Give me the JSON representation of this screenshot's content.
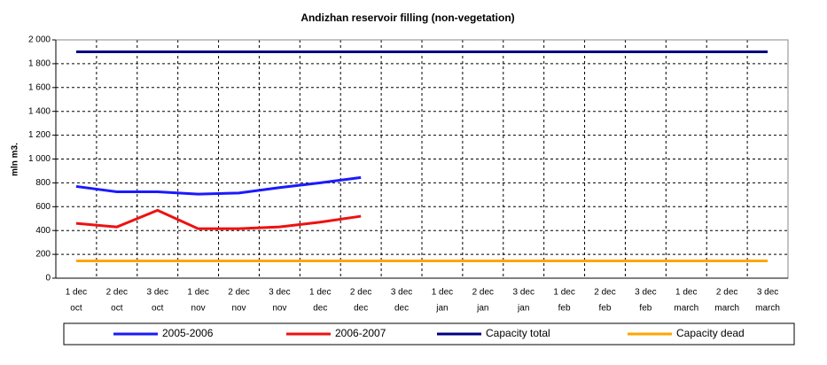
{
  "chart_data": {
    "type": "line",
    "title": "Andizhan reservoir filling  (non-vegetation)",
    "y_label": "mln m3.",
    "categories": [
      [
        "1 dec",
        "oct"
      ],
      [
        "2 dec",
        "oct"
      ],
      [
        "3 dec",
        "oct"
      ],
      [
        "1 dec",
        "nov"
      ],
      [
        "2 dec",
        "nov"
      ],
      [
        "3 dec",
        "nov"
      ],
      [
        "1 dec",
        "dec"
      ],
      [
        "2 dec",
        "dec"
      ],
      [
        "3 dec",
        "dec"
      ],
      [
        "1 dec",
        "jan"
      ],
      [
        "2 dec",
        "jan"
      ],
      [
        "3 dec",
        "jan"
      ],
      [
        "1 dec",
        "feb"
      ],
      [
        "2 dec",
        "feb"
      ],
      [
        "3 dec",
        "feb"
      ],
      [
        "1 dec",
        "march"
      ],
      [
        "2 dec",
        "march"
      ],
      [
        "3 dec",
        "march"
      ]
    ],
    "series": [
      {
        "name": "2005-2006",
        "color": "#1a1aff",
        "values": [
          770,
          725,
          725,
          705,
          715,
          760,
          800,
          845,
          null,
          null,
          null,
          null,
          null,
          null,
          null,
          null,
          null,
          null
        ]
      },
      {
        "name": "2006-2007",
        "color": "#ee1111",
        "values": [
          460,
          430,
          570,
          415,
          415,
          430,
          470,
          520,
          null,
          null,
          null,
          null,
          null,
          null,
          null,
          null,
          null,
          null
        ]
      },
      {
        "name": "Capacity total",
        "color": "#000080",
        "values": [
          1900,
          1900,
          1900,
          1900,
          1900,
          1900,
          1900,
          1900,
          1900,
          1900,
          1900,
          1900,
          1900,
          1900,
          1900,
          1900,
          1900,
          1900
        ]
      },
      {
        "name": "Capacity dead",
        "color": "#ffa500",
        "values": [
          145,
          145,
          145,
          145,
          145,
          145,
          145,
          145,
          145,
          145,
          145,
          145,
          145,
          145,
          145,
          145,
          145,
          145
        ]
      }
    ],
    "ylim": [
      0,
      2000
    ],
    "yticks": [
      0,
      200,
      400,
      600,
      800,
      {
        "value": 1000,
        "label": "1 000"
      },
      {
        "value": 1200,
        "label": "1 200"
      },
      {
        "value": 1400,
        "label": "1 400"
      },
      {
        "value": 1600,
        "label": "1 600"
      },
      {
        "value": 1800,
        "label": "1 800"
      },
      {
        "value": 2000,
        "label": "2 000"
      }
    ],
    "grid": true,
    "legend": "bottom"
  }
}
